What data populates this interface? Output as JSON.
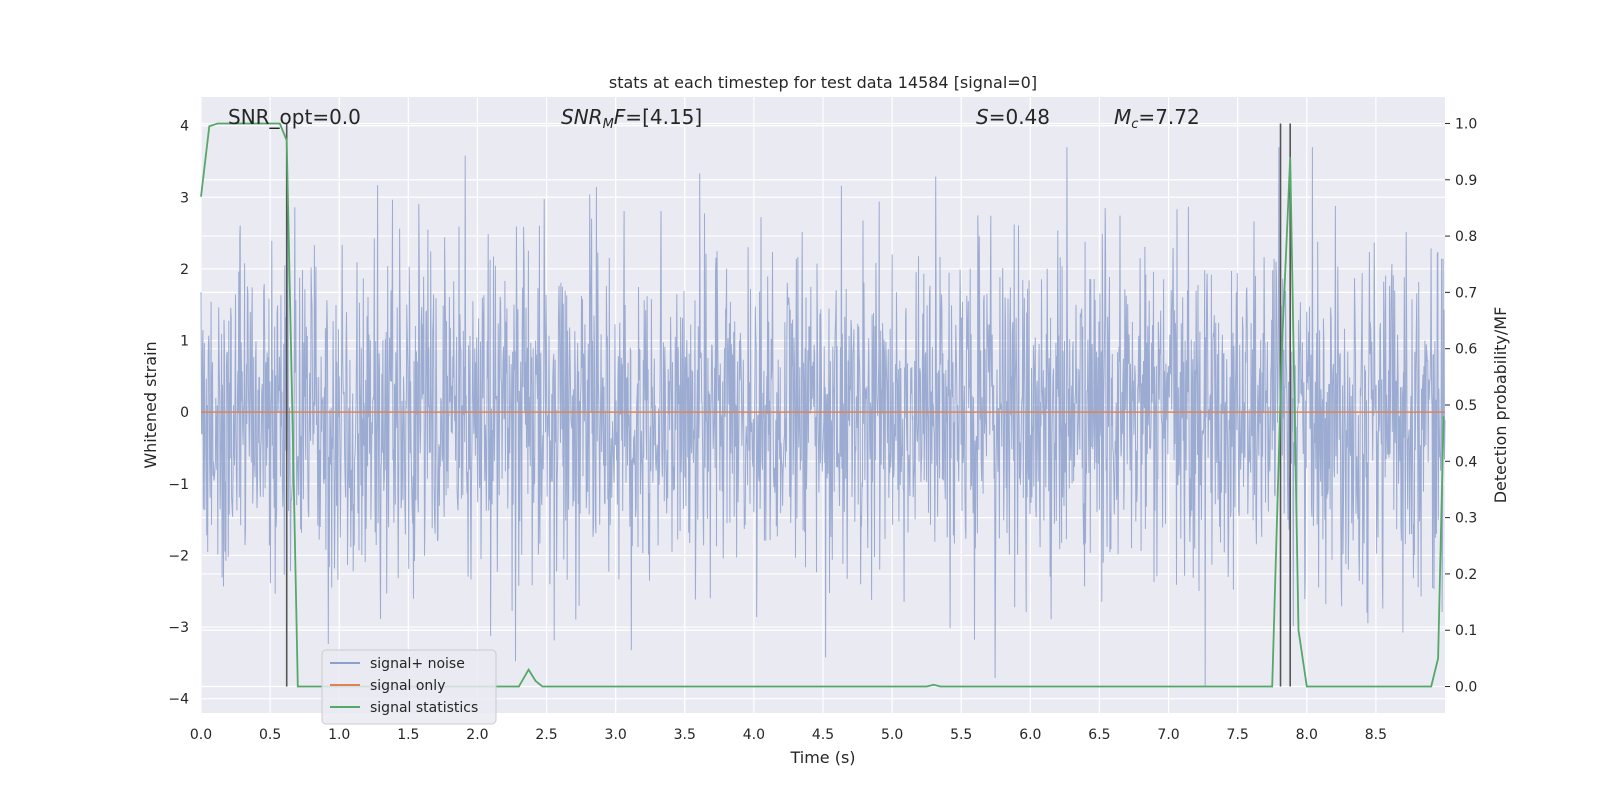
{
  "chart_data": {
    "type": "line",
    "title": "stats at each timestep for test data 14584 [signal=0]",
    "xlabel": "Time (s)",
    "ylabel_left": "Whitened strain",
    "ylabel_right": "Detection probability/MF",
    "xlim": [
      0.0,
      9.0
    ],
    "ylim_left": [
      -4.2,
      4.4
    ],
    "ylim_right": [
      -0.047,
      1.047
    ],
    "x_ticks": [
      "0.0",
      "0.5",
      "1.0",
      "1.5",
      "2.0",
      "2.5",
      "3.0",
      "3.5",
      "4.0",
      "4.5",
      "5.0",
      "5.5",
      "6.0",
      "6.5",
      "7.0",
      "7.5",
      "8.0",
      "8.5"
    ],
    "y_ticks_left": [
      "4",
      "3",
      "2",
      "1",
      "0",
      "−1",
      "−2",
      "−3",
      "−4"
    ],
    "y_ticks_right": [
      "1.0",
      "0.9",
      "0.8",
      "0.7",
      "0.6",
      "0.5",
      "0.4",
      "0.3",
      "0.2",
      "0.1",
      "0.0"
    ],
    "grid": true,
    "legend_position": "lower-left",
    "annotations": {
      "snr_opt": "SNR_opt=0.0",
      "snr_mf": "[4.15]",
      "s_value": "0.48",
      "mc_value": "7.72"
    },
    "series": [
      {
        "name": "signal+ noise",
        "color": "#8da0cb",
        "description_values": "noise strain, roughly in [-3.9, 3.7], mean 0",
        "y_range": [
          -3.9,
          3.7
        ]
      },
      {
        "name": "signal only",
        "color": "#dd8452",
        "x": [
          0.0,
          9.0
        ],
        "y": [
          0.0,
          0.0
        ]
      },
      {
        "name": "signal statistics",
        "color": "#55a868",
        "axis": "right",
        "x": [
          0.0,
          0.06,
          0.12,
          0.5,
          0.57,
          0.62,
          0.66,
          0.7,
          0.75,
          0.8,
          1.0,
          2.3,
          2.37,
          2.42,
          2.47,
          2.55,
          4.0,
          5.25,
          5.3,
          5.35,
          5.45,
          7.7,
          7.75,
          7.82,
          7.88,
          7.94,
          8.0,
          8.5,
          8.9,
          8.95,
          8.99
        ],
        "y": [
          0.87,
          0.995,
          1.0,
          1.0,
          1.0,
          0.97,
          0.5,
          0.0,
          0.0,
          0.0,
          0.0,
          0.0,
          0.03,
          0.01,
          0.0,
          0.0,
          0.0,
          0.0,
          0.003,
          0.0,
          0.0,
          0.0,
          0.0,
          0.6,
          0.94,
          0.1,
          0.0,
          0.0,
          0.0,
          0.05,
          0.48
        ]
      }
    ],
    "vertical_lines_x": [
      0.62,
      7.81,
      7.88
    ]
  }
}
